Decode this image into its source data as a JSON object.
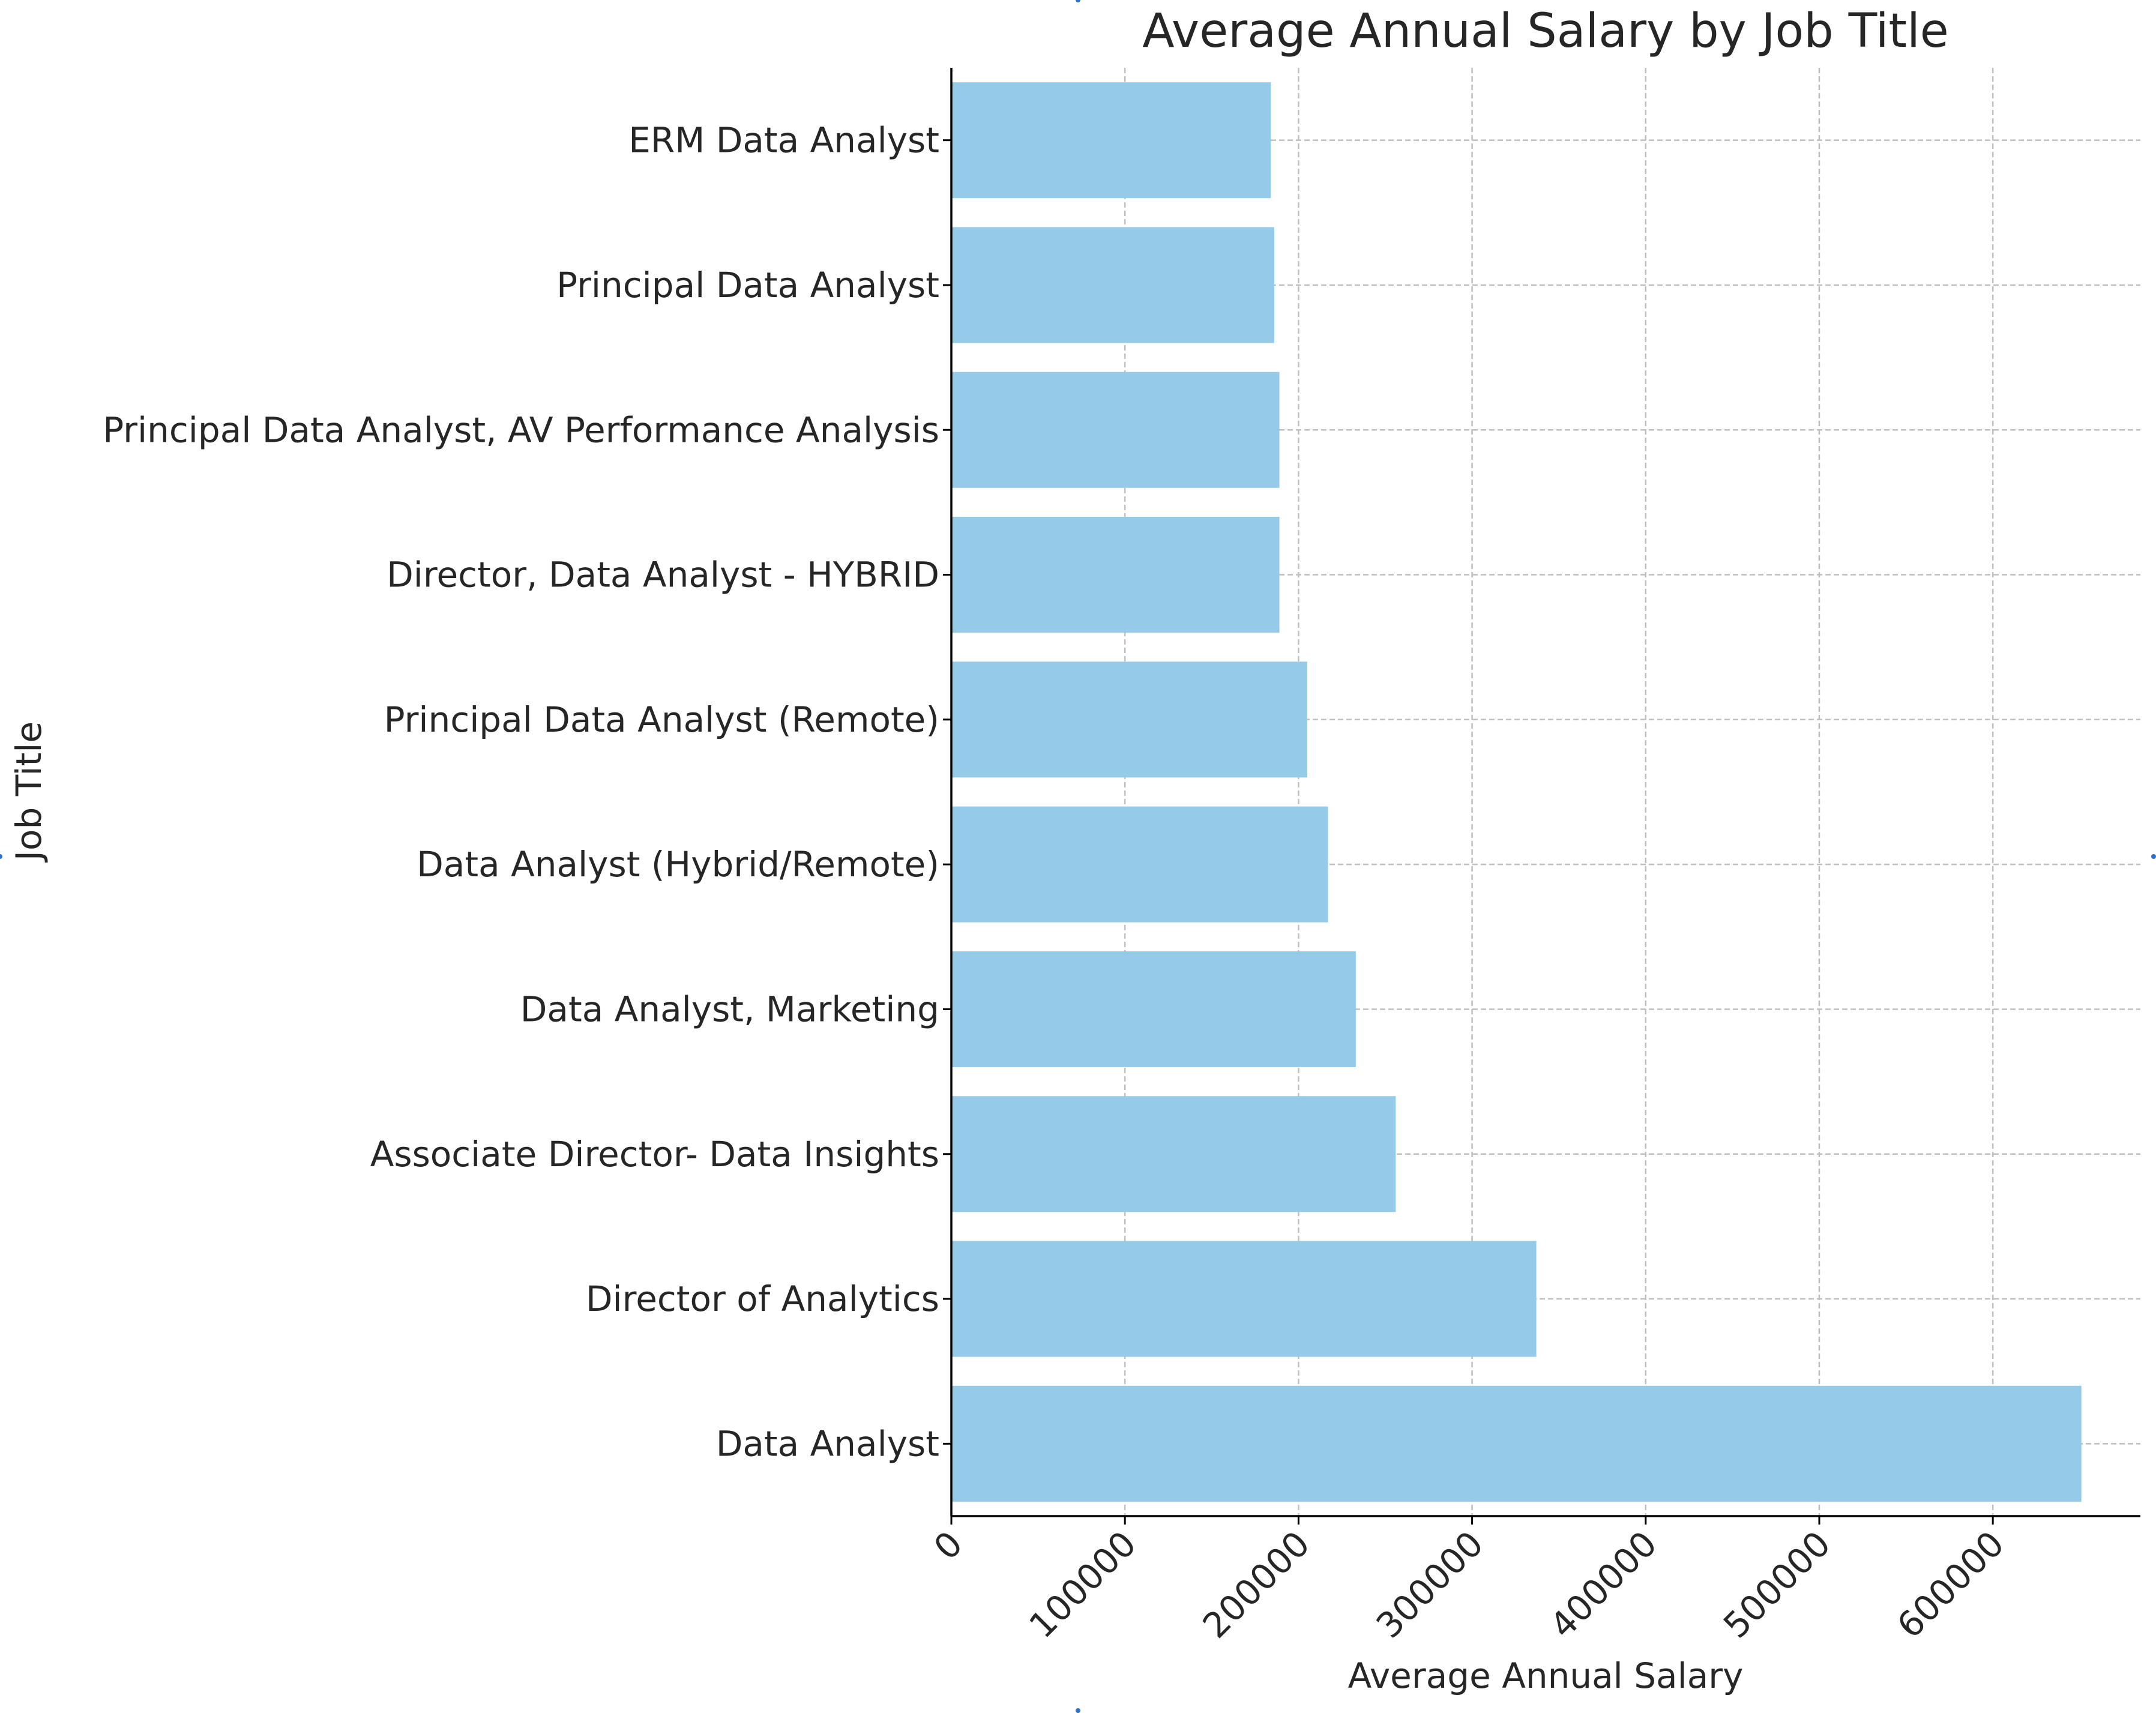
{
  "chart_data": {
    "type": "bar",
    "orientation": "horizontal",
    "title": "Average Annual Salary by Job Title",
    "xlabel": "Average Annual Salary",
    "ylabel": "Job Title",
    "categories": [
      "ERM Data Analyst",
      "Principal Data Analyst",
      "Principal Data Analyst, AV Performance Analysis",
      "Director, Data Analyst - HYBRID",
      "Principal Data Analyst (Remote)",
      "Data Analyst (Hybrid/Remote)",
      "Data Analyst, Marketing",
      "Associate Director- Data Insights",
      "Director of Analytics",
      "Data Analyst"
    ],
    "values": [
      184000,
      186000,
      189000,
      189000,
      205000,
      217000,
      233000,
      256000,
      337000,
      651000
    ],
    "xticks": [
      "0",
      "100000",
      "200000",
      "300000",
      "400000",
      "500000",
      "600000"
    ],
    "xlim": [
      0,
      685000
    ],
    "grid": true,
    "bar_color": "#95cbe8"
  }
}
